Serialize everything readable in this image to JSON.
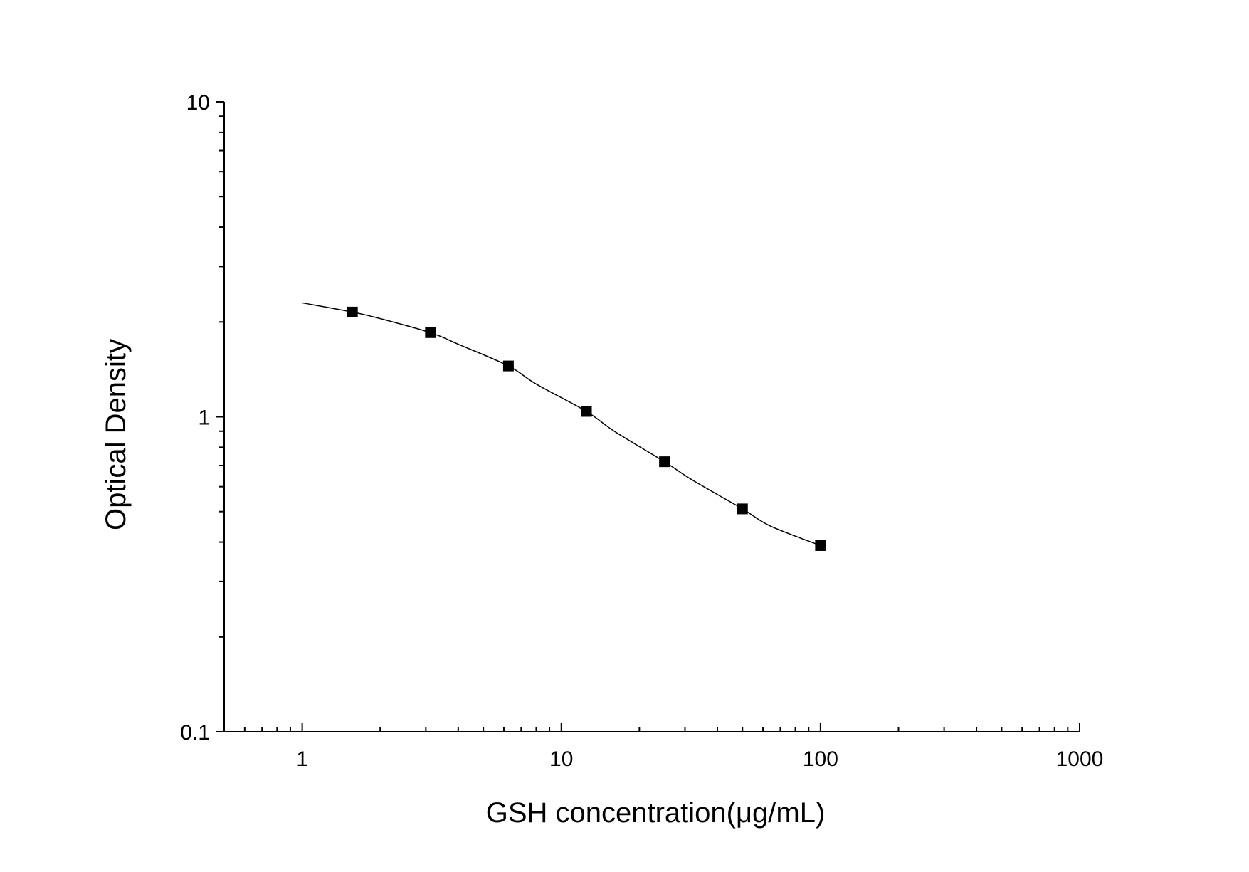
{
  "chart_data": {
    "type": "scatter",
    "title": "",
    "xlabel": "GSH concentration(μg/mL)",
    "ylabel": "Optical Density",
    "x_scale": "log",
    "y_scale": "log",
    "xlim": [
      0.5,
      1000
    ],
    "ylim": [
      0.1,
      10
    ],
    "x_tick_labels": [
      "1",
      "10",
      "100",
      "1000"
    ],
    "y_tick_labels": [
      "0.1",
      "1",
      "10"
    ],
    "x_tick_values": [
      1,
      10,
      100,
      1000
    ],
    "y_tick_values": [
      0.1,
      1,
      10
    ],
    "grid": false,
    "legend": "none",
    "series": [
      {
        "marker": "square",
        "x": [
          1.5625,
          3.125,
          6.25,
          12.5,
          25,
          50,
          100
        ],
        "y": [
          2.15,
          1.85,
          1.45,
          1.04,
          0.72,
          0.51,
          0.39
        ]
      }
    ],
    "fit_curve": {
      "x": [
        1,
        1.5625,
        2,
        3.125,
        4,
        6.25,
        8,
        12.5,
        16,
        25,
        32,
        50,
        64,
        100
      ],
      "y": [
        2.3,
        2.15,
        2.05,
        1.85,
        1.7,
        1.45,
        1.27,
        1.04,
        0.9,
        0.72,
        0.63,
        0.51,
        0.45,
        0.39
      ]
    }
  }
}
